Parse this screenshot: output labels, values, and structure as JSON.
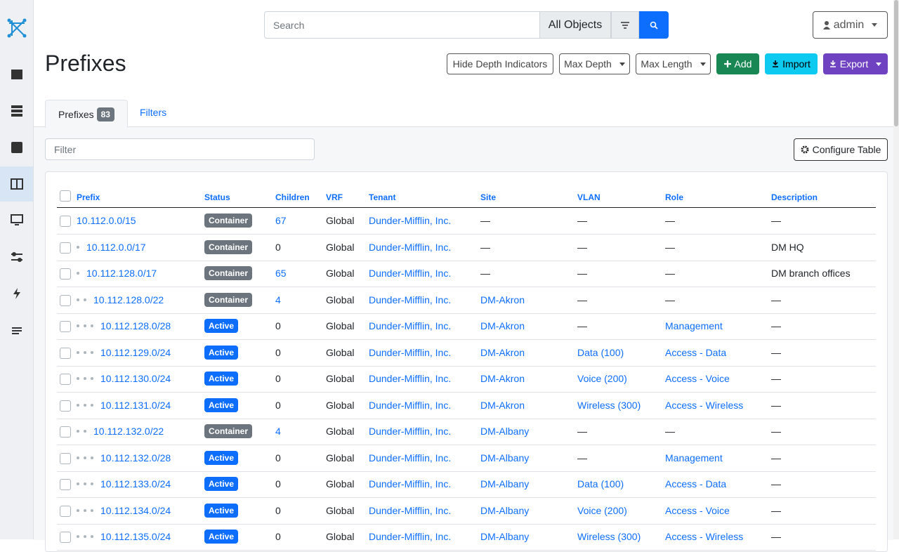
{
  "header": {
    "search_placeholder": "Search",
    "scope": "All Objects",
    "user": "admin"
  },
  "page": {
    "title": "Prefixes",
    "buttons": [
      "Hide Depth Indicators",
      "Max Depth",
      "Max Length",
      "Add",
      "Import",
      "Export"
    ]
  },
  "tabs": [
    {
      "label": "Prefixes",
      "badge": 83
    },
    {
      "label": "Filters"
    }
  ],
  "filter_placeholder": "Filter",
  "configure_button": "Configure Table",
  "table": {
    "columns": [
      "Prefix",
      "Status",
      "Children",
      "VRF",
      "Tenant",
      "Site",
      "VLAN",
      "Role",
      "Description"
    ],
    "rows": [
      {
        "depth": 0,
        "prefix": "10.112.0.0/15",
        "status": {
          "label": "Container",
          "color": "#6c757d"
        },
        "children": 67,
        "vrf": "Global",
        "tenant": "Dunder-Mifflin, Inc.",
        "site": "—",
        "vlan": "—",
        "role": "—",
        "description": "—"
      },
      {
        "depth": 1,
        "prefix": "10.112.0.0/17",
        "status": {
          "label": "Container",
          "color": "#6c757d"
        },
        "children": 0,
        "vrf": "Global",
        "tenant": "Dunder-Mifflin, Inc.",
        "site": "—",
        "vlan": "—",
        "role": "—",
        "description": "DM HQ"
      },
      {
        "depth": 1,
        "prefix": "10.112.128.0/17",
        "status": {
          "label": "Container",
          "color": "#6c757d"
        },
        "children": 65,
        "vrf": "Global",
        "tenant": "Dunder-Mifflin, Inc.",
        "site": "—",
        "vlan": "—",
        "role": "—",
        "description": "DM branch offices"
      },
      {
        "depth": 2,
        "prefix": "10.112.128.0/22",
        "status": {
          "label": "Container",
          "color": "#6c757d"
        },
        "children": 4,
        "vrf": "Global",
        "tenant": "Dunder-Mifflin, Inc.",
        "site": "DM-Akron",
        "vlan": "—",
        "role": "—",
        "description": "—"
      },
      {
        "depth": 3,
        "prefix": "10.112.128.0/28",
        "status": {
          "label": "Active",
          "color": "#0d6efd"
        },
        "children": 0,
        "vrf": "Global",
        "tenant": "Dunder-Mifflin, Inc.",
        "site": "DM-Akron",
        "vlan": "—",
        "role": "Management",
        "description": "—"
      },
      {
        "depth": 3,
        "prefix": "10.112.129.0/24",
        "status": {
          "label": "Active",
          "color": "#0d6efd"
        },
        "children": 0,
        "vrf": "Global",
        "tenant": "Dunder-Mifflin, Inc.",
        "site": "DM-Akron",
        "vlan": "Data (100)",
        "role": "Access - Data",
        "description": "—"
      },
      {
        "depth": 3,
        "prefix": "10.112.130.0/24",
        "status": {
          "label": "Active",
          "color": "#0d6efd"
        },
        "children": 0,
        "vrf": "Global",
        "tenant": "Dunder-Mifflin, Inc.",
        "site": "DM-Akron",
        "vlan": "Voice (200)",
        "role": "Access - Voice",
        "description": "—"
      },
      {
        "depth": 3,
        "prefix": "10.112.131.0/24",
        "status": {
          "label": "Active",
          "color": "#0d6efd"
        },
        "children": 0,
        "vrf": "Global",
        "tenant": "Dunder-Mifflin, Inc.",
        "site": "DM-Akron",
        "vlan": "Wireless (300)",
        "role": "Access - Wireless",
        "description": "—"
      },
      {
        "depth": 2,
        "prefix": "10.112.132.0/22",
        "status": {
          "label": "Container",
          "color": "#6c757d"
        },
        "children": 4,
        "vrf": "Global",
        "tenant": "Dunder-Mifflin, Inc.",
        "site": "DM-Albany",
        "vlan": "—",
        "role": "—",
        "description": "—"
      },
      {
        "depth": 3,
        "prefix": "10.112.132.0/28",
        "status": {
          "label": "Active",
          "color": "#0d6efd"
        },
        "children": 0,
        "vrf": "Global",
        "tenant": "Dunder-Mifflin, Inc.",
        "site": "DM-Albany",
        "vlan": "—",
        "role": "Management",
        "description": "—"
      },
      {
        "depth": 3,
        "prefix": "10.112.133.0/24",
        "status": {
          "label": "Active",
          "color": "#0d6efd"
        },
        "children": 0,
        "vrf": "Global",
        "tenant": "Dunder-Mifflin, Inc.",
        "site": "DM-Albany",
        "vlan": "Data (100)",
        "role": "Access - Data",
        "description": "—"
      },
      {
        "depth": 3,
        "prefix": "10.112.134.0/24",
        "status": {
          "label": "Active",
          "color": "#0d6efd"
        },
        "children": 0,
        "vrf": "Global",
        "tenant": "Dunder-Mifflin, Inc.",
        "site": "DM-Albany",
        "vlan": "Voice (200)",
        "role": "Access - Voice",
        "description": "—"
      },
      {
        "depth": 3,
        "prefix": "10.112.135.0/24",
        "status": {
          "label": "Active",
          "color": "#0d6efd"
        },
        "children": 0,
        "vrf": "Global",
        "tenant": "Dunder-Mifflin, Inc.",
        "site": "DM-Albany",
        "vlan": "Wireless (300)",
        "role": "Access - Wireless",
        "description": "—"
      }
    ]
  }
}
